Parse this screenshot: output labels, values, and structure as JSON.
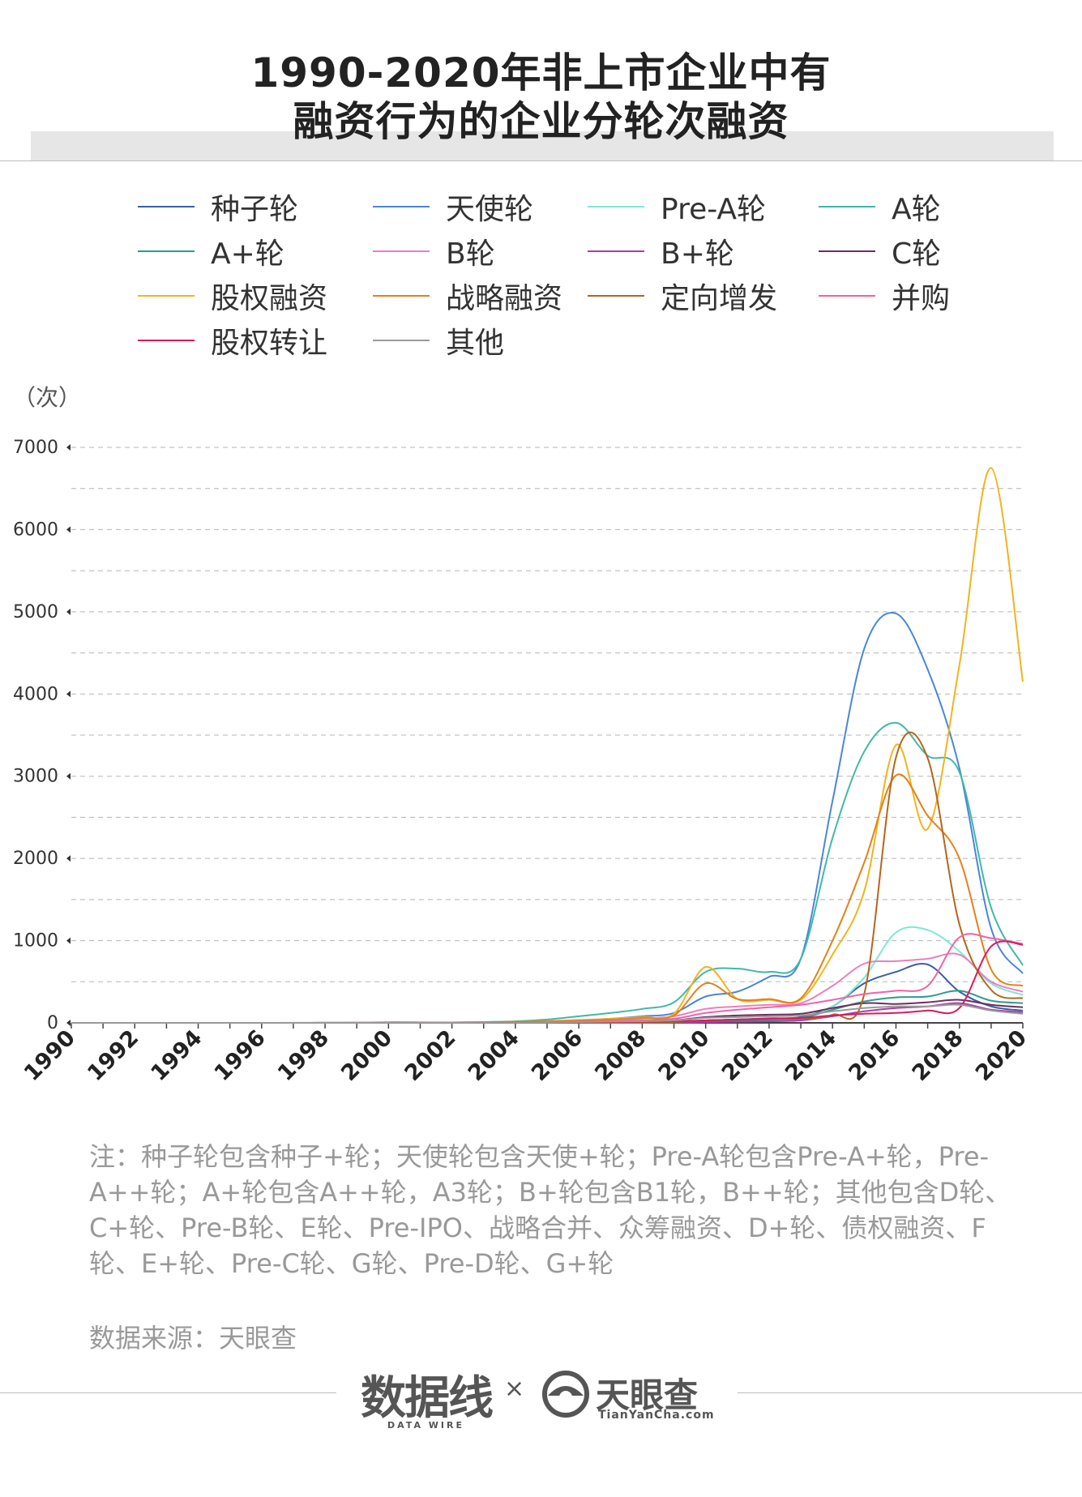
{
  "title": {
    "line1": "1990-2020年非上市企业中有",
    "line2": "融资行为的企业分轮次融资"
  },
  "unit_label": "（次）",
  "note": "注：种子轮包含种子+轮；天使轮包含天使+轮；Pre-A轮包含Pre-A+轮，Pre-A++轮；A+轮包含A++轮，A3轮；B+轮包含B1轮，B++轮；其他包含D轮、C+轮、Pre-B轮、E轮、Pre-IPO、战略合并、众筹融资、D+轮、债权融资、F轮、E+轮、Pre-C轮、G轮、Pre-D轮、G+轮",
  "source": "数据来源：天眼查",
  "logos": {
    "datawire": "数据线",
    "datawire_sub": "DATA WIRE",
    "times": "×",
    "tianyancha": "天眼查",
    "tianyancha_sub": "TianYanCha.com"
  },
  "chart_data": {
    "type": "line",
    "title": "1990-2020年非上市企业中有融资行为的企业分轮次融资",
    "xlabel": "",
    "ylabel": "（次）",
    "xlim": [
      1990,
      2020
    ],
    "ylim": [
      0,
      7000
    ],
    "x": [
      1990,
      1991,
      1992,
      1993,
      1994,
      1995,
      1996,
      1997,
      1998,
      1999,
      2000,
      2001,
      2002,
      2003,
      2004,
      2005,
      2006,
      2007,
      2008,
      2009,
      2010,
      2011,
      2012,
      2013,
      2014,
      2015,
      2016,
      2017,
      2018,
      2019,
      2020
    ],
    "x_tick_labels": [
      "1990",
      "1992",
      "1994",
      "1996",
      "1998",
      "2000",
      "2002",
      "2004",
      "2006",
      "2008",
      "2010",
      "2012",
      "2014",
      "2016",
      "2018",
      "2020"
    ],
    "y_ticks": [
      0,
      1000,
      2000,
      3000,
      4000,
      5000,
      6000,
      7000
    ],
    "grid": "horizontal dashed",
    "legend_position": "top",
    "series": [
      {
        "name": "种子轮",
        "color": "#3a5fa8",
        "values": [
          0,
          0,
          0,
          0,
          0,
          0,
          0,
          0,
          0,
          0,
          0,
          0,
          0,
          0,
          0,
          0,
          2,
          4,
          8,
          15,
          30,
          40,
          55,
          70,
          200,
          480,
          620,
          710,
          380,
          200,
          150
        ]
      },
      {
        "name": "天使轮",
        "color": "#4a86d8",
        "values": [
          0,
          0,
          0,
          0,
          0,
          0,
          0,
          0,
          1,
          2,
          5,
          4,
          3,
          5,
          10,
          20,
          30,
          50,
          80,
          120,
          320,
          380,
          560,
          780,
          2700,
          4550,
          4980,
          4300,
          3100,
          1150,
          600
        ]
      },
      {
        "name": "Pre-A轮",
        "color": "#7ee8d6",
        "values": [
          0,
          0,
          0,
          0,
          0,
          0,
          0,
          0,
          0,
          0,
          0,
          0,
          0,
          0,
          0,
          0,
          1,
          2,
          3,
          5,
          10,
          20,
          30,
          50,
          200,
          550,
          1100,
          1130,
          870,
          480,
          340
        ]
      },
      {
        "name": "A轮",
        "color": "#40b8a8",
        "values": [
          0,
          0,
          0,
          0,
          0,
          0,
          0,
          1,
          2,
          3,
          8,
          6,
          5,
          10,
          20,
          40,
          80,
          120,
          170,
          250,
          620,
          660,
          620,
          780,
          2250,
          3300,
          3650,
          3250,
          3050,
          1400,
          700
        ]
      },
      {
        "name": "A+轮",
        "color": "#2e9c8a",
        "values": [
          0,
          0,
          0,
          0,
          0,
          0,
          0,
          0,
          0,
          0,
          0,
          0,
          0,
          0,
          0,
          0,
          1,
          2,
          4,
          8,
          20,
          30,
          40,
          60,
          160,
          260,
          310,
          320,
          390,
          270,
          240
        ]
      },
      {
        "name": "B轮",
        "color": "#ea7fc0",
        "values": [
          0,
          0,
          0,
          0,
          0,
          0,
          0,
          0,
          0,
          1,
          2,
          2,
          2,
          3,
          5,
          10,
          20,
          30,
          50,
          80,
          170,
          200,
          220,
          240,
          450,
          720,
          750,
          780,
          830,
          500,
          380
        ]
      },
      {
        "name": "B+轮",
        "color": "#a63fa6",
        "values": [
          0,
          0,
          0,
          0,
          0,
          0,
          0,
          0,
          0,
          0,
          0,
          0,
          0,
          0,
          0,
          0,
          0,
          1,
          2,
          3,
          10,
          15,
          20,
          30,
          80,
          140,
          180,
          200,
          240,
          160,
          130
        ]
      },
      {
        "name": "C轮",
        "color": "#6b2e5e",
        "values": [
          0,
          0,
          0,
          0,
          0,
          0,
          0,
          0,
          0,
          0,
          1,
          1,
          1,
          2,
          3,
          5,
          10,
          15,
          20,
          30,
          70,
          90,
          100,
          110,
          180,
          240,
          230,
          250,
          280,
          220,
          190
        ]
      },
      {
        "name": "股权融资",
        "color": "#f0b41e",
        "values": [
          0,
          0,
          0,
          0,
          0,
          0,
          0,
          0,
          1,
          2,
          5,
          4,
          5,
          8,
          15,
          20,
          35,
          50,
          70,
          110,
          680,
          290,
          280,
          280,
          830,
          1600,
          3380,
          2360,
          4350,
          6750,
          4150
        ]
      },
      {
        "name": "战略融资",
        "color": "#e2821c",
        "values": [
          0,
          0,
          0,
          0,
          0,
          0,
          0,
          0,
          1,
          2,
          5,
          5,
          5,
          8,
          12,
          20,
          30,
          40,
          60,
          90,
          480,
          290,
          290,
          300,
          1000,
          1950,
          3010,
          2520,
          2000,
          650,
          450
        ]
      },
      {
        "name": "定向增发",
        "color": "#b5651d",
        "values": [
          0,
          0,
          0,
          0,
          0,
          0,
          0,
          0,
          0,
          0,
          0,
          0,
          0,
          0,
          0,
          0,
          0,
          0,
          5,
          10,
          30,
          40,
          50,
          50,
          100,
          350,
          3230,
          3220,
          1200,
          400,
          300
        ]
      },
      {
        "name": "并购",
        "color": "#f062a8",
        "values": [
          0,
          0,
          0,
          0,
          0,
          0,
          0,
          0,
          0,
          1,
          3,
          3,
          3,
          5,
          8,
          10,
          15,
          20,
          30,
          50,
          120,
          160,
          190,
          220,
          280,
          350,
          390,
          450,
          1040,
          1030,
          960
        ]
      },
      {
        "name": "股权转让",
        "color": "#d81b60",
        "values": [
          0,
          0,
          0,
          0,
          0,
          0,
          0,
          0,
          0,
          0,
          1,
          1,
          1,
          2,
          3,
          5,
          8,
          10,
          15,
          20,
          30,
          40,
          50,
          60,
          90,
          110,
          120,
          150,
          180,
          930,
          950
        ]
      },
      {
        "name": "其他",
        "color": "#9a9a9a",
        "values": [
          0,
          0,
          0,
          0,
          0,
          0,
          0,
          0,
          0,
          0,
          1,
          1,
          1,
          2,
          3,
          5,
          10,
          15,
          20,
          30,
          60,
          70,
          80,
          90,
          140,
          180,
          200,
          200,
          220,
          150,
          110
        ]
      }
    ]
  }
}
